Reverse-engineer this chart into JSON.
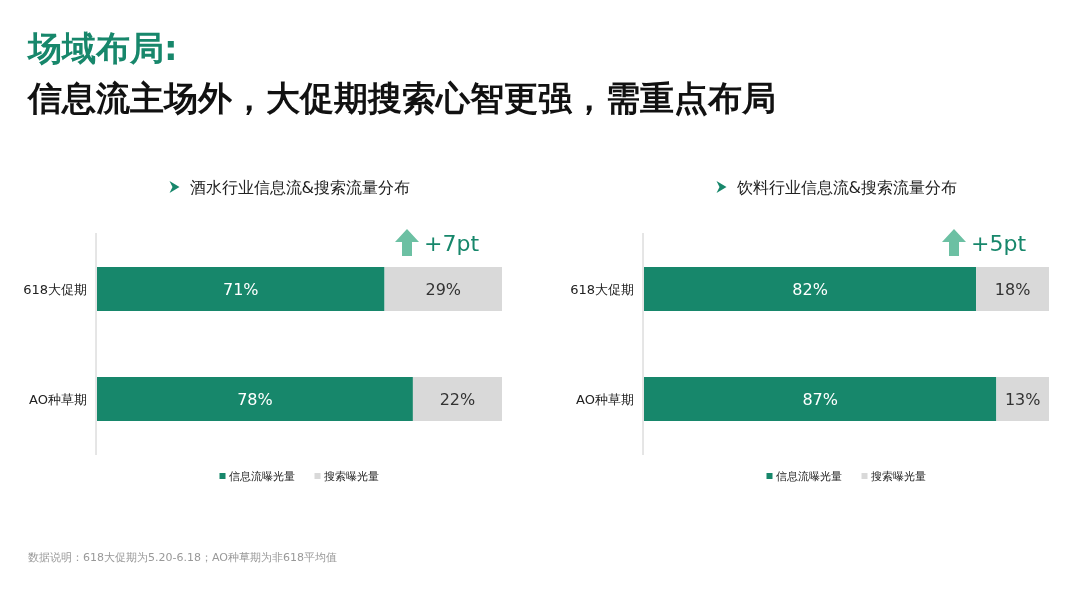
{
  "chart_data": [
    {
      "type": "bar",
      "orientation": "horizontal",
      "stacked": true,
      "title": "酒水行业信息流&搜索流量分布",
      "categories": [
        "618大促期",
        "AO种草期"
      ],
      "series": [
        {
          "name": "信息流曝光量",
          "color": "#17876b",
          "values": [
            71,
            78
          ],
          "value_labels": [
            "71%",
            "78%"
          ]
        },
        {
          "name": "搜索曝光量",
          "color": "#d9d9d9",
          "values": [
            29,
            22
          ],
          "value_labels": [
            "29%",
            "22%"
          ]
        }
      ],
      "xlim": [
        0,
        100
      ],
      "tick_labels": "y",
      "legend": "bottom",
      "annotations": [
        "场域布局:",
        "信息流主场外，大促期搜索心智更强，需重点布局",
        "+7pt",
        "数据说明：618大促期为5.20-6.18；AO种草期为非618平均值"
      ]
    },
    {
      "type": "bar",
      "orientation": "horizontal",
      "stacked": true,
      "title": "饮料行业信息流&搜索流量分布",
      "categories": [
        "618大促期",
        "AO种草期"
      ],
      "series": [
        {
          "name": "信息流曝光量",
          "color": "#17876b",
          "values": [
            82,
            87
          ],
          "value_labels": [
            "82%",
            "87%"
          ]
        },
        {
          "name": "搜索曝光量",
          "color": "#d9d9d9",
          "values": [
            18,
            13
          ],
          "value_labels": [
            "18%",
            "13%"
          ]
        }
      ],
      "xlim": [
        0,
        100
      ],
      "tick_labels": "y",
      "legend": "bottom",
      "annotations": [
        "+5pt"
      ]
    }
  ]
}
